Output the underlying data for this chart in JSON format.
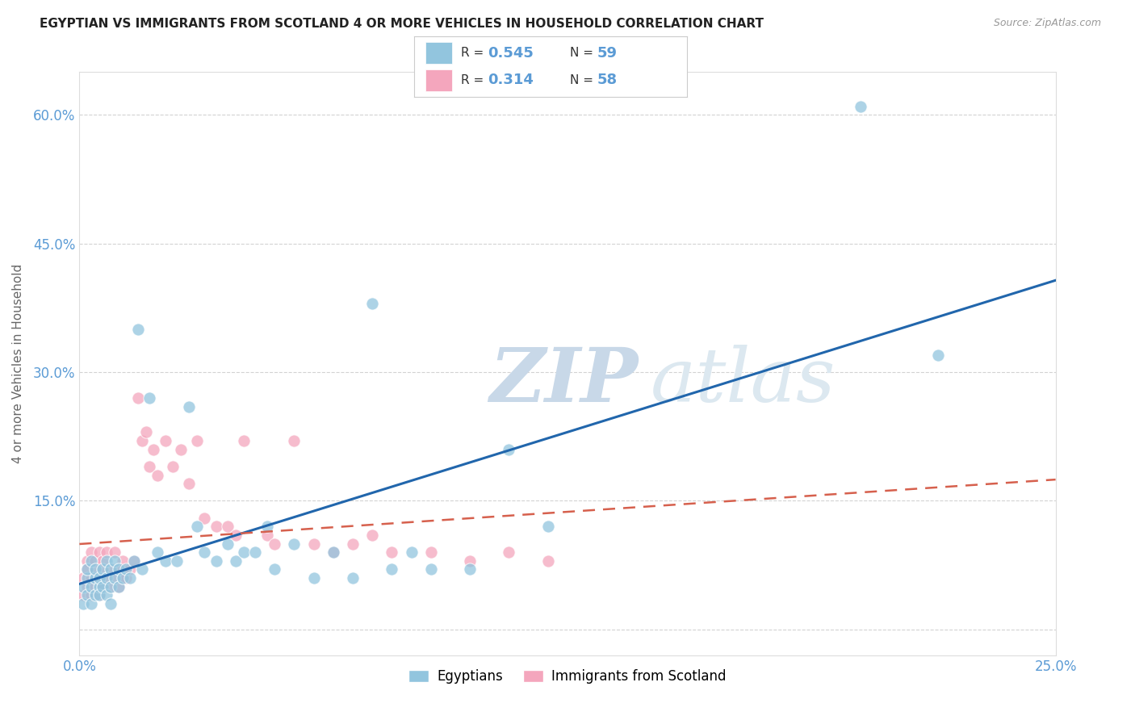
{
  "title": "EGYPTIAN VS IMMIGRANTS FROM SCOTLAND 4 OR MORE VEHICLES IN HOUSEHOLD CORRELATION CHART",
  "source": "Source: ZipAtlas.com",
  "ylabel": "4 or more Vehicles in Household",
  "x_min": 0.0,
  "x_max": 0.25,
  "y_min": -0.03,
  "y_max": 0.65,
  "x_ticks": [
    0.0,
    0.05,
    0.1,
    0.15,
    0.2,
    0.25
  ],
  "x_tick_labels": [
    "0.0%",
    "",
    "",
    "",
    "",
    "25.0%"
  ],
  "y_ticks": [
    0.0,
    0.15,
    0.3,
    0.45,
    0.6
  ],
  "y_tick_labels": [
    "",
    "15.0%",
    "30.0%",
    "45.0%",
    "60.0%"
  ],
  "R_blue": "0.545",
  "N_blue": "59",
  "R_pink": "0.314",
  "N_pink": "58",
  "color_blue": "#92c5de",
  "color_pink": "#f4a6bd",
  "color_line_blue": "#2166ac",
  "color_line_pink": "#d6604d",
  "color_axis_text": "#5b9bd5",
  "color_grid": "#c8c8c8",
  "watermark_zip": "ZIP",
  "watermark_atlas": "atlas",
  "blue_x": [
    0.001,
    0.001,
    0.002,
    0.002,
    0.002,
    0.003,
    0.003,
    0.003,
    0.004,
    0.004,
    0.004,
    0.005,
    0.005,
    0.005,
    0.006,
    0.006,
    0.007,
    0.007,
    0.007,
    0.008,
    0.008,
    0.008,
    0.009,
    0.009,
    0.01,
    0.01,
    0.011,
    0.012,
    0.013,
    0.014,
    0.015,
    0.016,
    0.018,
    0.02,
    0.022,
    0.025,
    0.028,
    0.03,
    0.032,
    0.035,
    0.038,
    0.04,
    0.042,
    0.045,
    0.048,
    0.05,
    0.055,
    0.06,
    0.065,
    0.07,
    0.075,
    0.08,
    0.085,
    0.09,
    0.1,
    0.11,
    0.12,
    0.2,
    0.22
  ],
  "blue_y": [
    0.05,
    0.03,
    0.06,
    0.04,
    0.07,
    0.05,
    0.08,
    0.03,
    0.06,
    0.04,
    0.07,
    0.05,
    0.06,
    0.04,
    0.05,
    0.07,
    0.04,
    0.06,
    0.08,
    0.05,
    0.07,
    0.03,
    0.06,
    0.08,
    0.05,
    0.07,
    0.06,
    0.07,
    0.06,
    0.08,
    0.35,
    0.07,
    0.27,
    0.09,
    0.08,
    0.08,
    0.26,
    0.12,
    0.09,
    0.08,
    0.1,
    0.08,
    0.09,
    0.09,
    0.12,
    0.07,
    0.1,
    0.06,
    0.09,
    0.06,
    0.38,
    0.07,
    0.09,
    0.07,
    0.07,
    0.21,
    0.12,
    0.61,
    0.32
  ],
  "pink_x": [
    0.001,
    0.001,
    0.002,
    0.002,
    0.002,
    0.003,
    0.003,
    0.003,
    0.004,
    0.004,
    0.004,
    0.005,
    0.005,
    0.005,
    0.006,
    0.006,
    0.006,
    0.007,
    0.007,
    0.008,
    0.008,
    0.009,
    0.009,
    0.01,
    0.01,
    0.011,
    0.011,
    0.012,
    0.013,
    0.014,
    0.015,
    0.016,
    0.017,
    0.018,
    0.019,
    0.02,
    0.022,
    0.024,
    0.026,
    0.028,
    0.03,
    0.032,
    0.035,
    0.038,
    0.04,
    0.042,
    0.048,
    0.05,
    0.055,
    0.06,
    0.065,
    0.07,
    0.075,
    0.08,
    0.09,
    0.1,
    0.11,
    0.12
  ],
  "pink_y": [
    0.06,
    0.04,
    0.08,
    0.05,
    0.07,
    0.06,
    0.09,
    0.04,
    0.07,
    0.05,
    0.08,
    0.06,
    0.09,
    0.04,
    0.07,
    0.05,
    0.08,
    0.06,
    0.09,
    0.05,
    0.07,
    0.06,
    0.09,
    0.05,
    0.07,
    0.06,
    0.08,
    0.06,
    0.07,
    0.08,
    0.27,
    0.22,
    0.23,
    0.19,
    0.21,
    0.18,
    0.22,
    0.19,
    0.21,
    0.17,
    0.22,
    0.13,
    0.12,
    0.12,
    0.11,
    0.22,
    0.11,
    0.1,
    0.22,
    0.1,
    0.09,
    0.1,
    0.11,
    0.09,
    0.09,
    0.08,
    0.09,
    0.08
  ]
}
